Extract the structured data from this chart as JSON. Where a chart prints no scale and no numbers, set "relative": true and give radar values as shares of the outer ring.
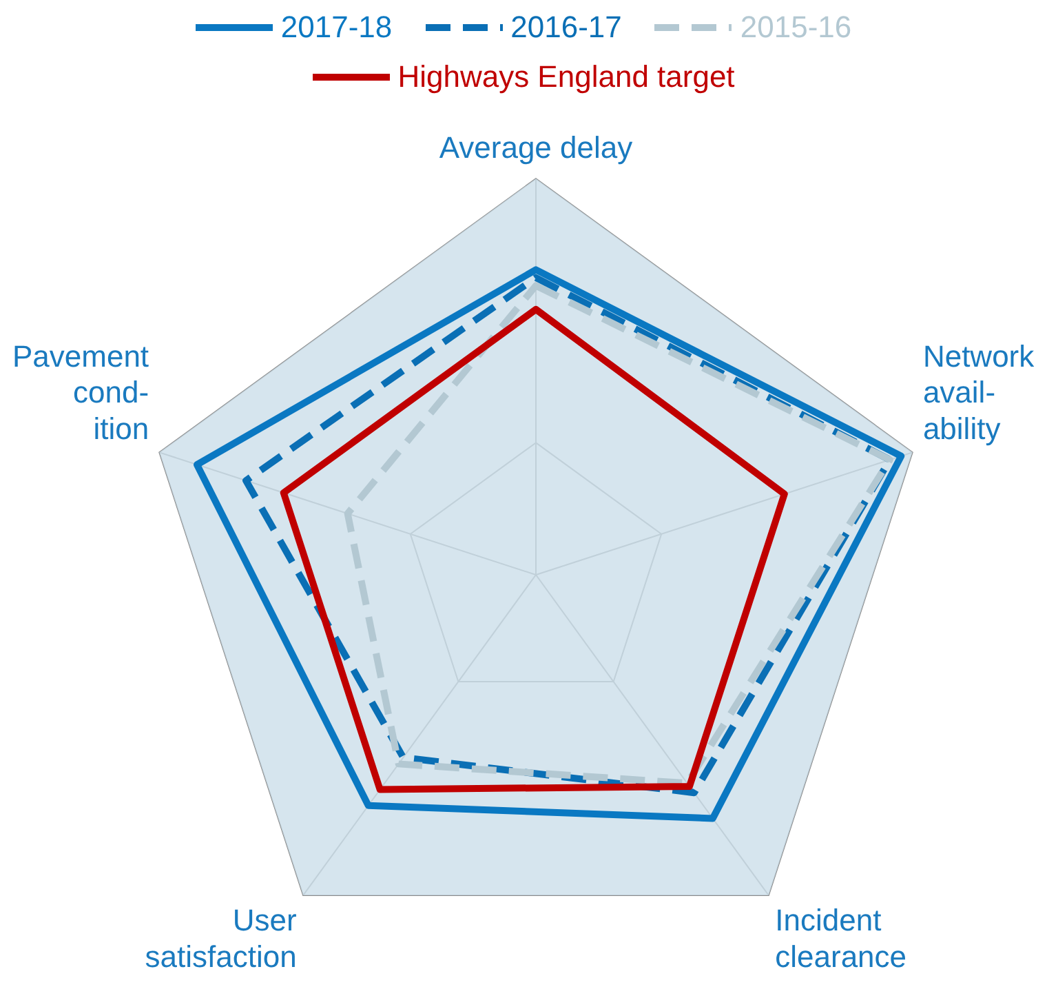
{
  "chart_data": {
    "type": "radar",
    "relative": true,
    "categories": [
      "Average delay",
      "Network\navail-\nability",
      "Incident\nclearance",
      "User\nsatisfaction",
      "Pavement\ncond-\nition"
    ],
    "legend": "top",
    "series": [
      {
        "name": "2017-18",
        "color": "#0a78c2",
        "line_style": "solid",
        "values": [
          0.77,
          0.97,
          0.76,
          0.72,
          0.9
        ]
      },
      {
        "name": "2016-17",
        "color": "#0a6fb5",
        "line_style": "dashed",
        "values": [
          0.75,
          0.94,
          0.68,
          0.57,
          0.77
        ]
      },
      {
        "name": "2015-16",
        "color": "#b3c8d2",
        "line_style": "dashed",
        "values": [
          0.73,
          0.94,
          0.65,
          0.59,
          0.5
        ]
      },
      {
        "name": "Highways England target",
        "color": "#c00000",
        "line_style": "solid",
        "values": [
          0.67,
          0.66,
          0.66,
          0.67,
          0.67
        ]
      }
    ]
  }
}
